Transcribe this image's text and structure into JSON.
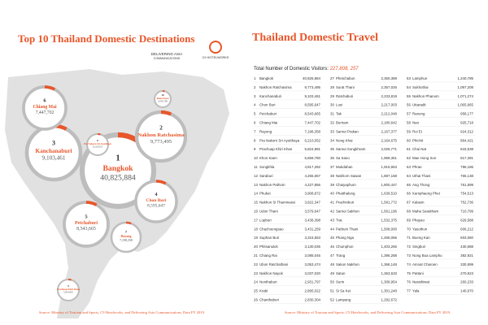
{
  "left": {
    "title": "Top 10 Thailand Domestic Destinations",
    "logo_1": "DELIVERING ASIA",
    "logo_1_sub": "COMMUNICATIONS",
    "logo_2": "C9 HOTELWORKS",
    "bubbles": [
      {
        "rank": 1,
        "name": "Bangkok",
        "value": "40,825,884"
      },
      {
        "rank": 2,
        "name": "Nakhon Ratchasima",
        "value": "9,773,495"
      },
      {
        "rank": 3,
        "name": "Kanchanaburi",
        "value": "9,103,461"
      },
      {
        "rank": 4,
        "name": "Chon Buri",
        "value": "8,595,647"
      },
      {
        "rank": 5,
        "name": "Petchaburi",
        "value": "8,543,665"
      },
      {
        "rank": 6,
        "name": "Chiang Mai",
        "value": "7,447,702"
      },
      {
        "rank": 7,
        "name": "Rayong",
        "value": "7,198,358"
      },
      {
        "rank": 8,
        "name": "Pra Nakorn Sri Ayutthaya",
        "value": "6,210,052"
      },
      {
        "rank": 9,
        "name": "Prachuap Khiri Khan",
        "value": "5,824,981"
      },
      {
        "rank": 10,
        "name": "Khon Kaen",
        "value": "5,659,780"
      }
    ],
    "source": "Source: Ministry of Tourism and Sports, C9 Hotelworks, and Delivering Asia Communications. Data FY 2019."
  },
  "right": {
    "title": "Thailand Domestic Travel",
    "total_label": "Total Number of Domestic Visitors:",
    "total_value": "227,808, 257",
    "rows": [
      {
        "rank": 1,
        "name": "Bangkok",
        "value": "40,825,884"
      },
      {
        "rank": 2,
        "name": "Nakhon Ratchasima",
        "value": "9,773,495"
      },
      {
        "rank": 3,
        "name": "Kanchanaburi",
        "value": "9,103,461"
      },
      {
        "rank": 4,
        "name": "Chon Buri",
        "value": "8,595,647"
      },
      {
        "rank": 5,
        "name": "Petchaburi",
        "value": "8,543,665"
      },
      {
        "rank": 6,
        "name": "Chiang Mai",
        "value": "7,447,702"
      },
      {
        "rank": 7,
        "name": "Rayong",
        "value": "7,198,358"
      },
      {
        "rank": 8,
        "name": "Pra Nakorn Sri Ayutthaya",
        "value": "6,210,052"
      },
      {
        "rank": 9,
        "name": "Prachuap Khiri Khan",
        "value": "5,824,981"
      },
      {
        "rank": 10,
        "name": "Khon Kaen",
        "value": "5,659,780"
      },
      {
        "rank": 11,
        "name": "Songkhla",
        "value": "4,817,282"
      },
      {
        "rank": 12,
        "name": "Saraburi",
        "value": "4,255,657"
      },
      {
        "rank": 13,
        "name": "Nakhon Pathom",
        "value": "4,227,856"
      },
      {
        "rank": 14,
        "name": "Phuket",
        "value": "3,908,872"
      },
      {
        "rank": 15,
        "name": "Nakhon Si Thammarat",
        "value": "3,822,347"
      },
      {
        "rank": 16,
        "name": "Udon Thani",
        "value": "3,579,647"
      },
      {
        "rank": 17,
        "name": "Lopburi",
        "value": "3,438,398"
      },
      {
        "rank": 18,
        "name": "Chachoengsao",
        "value": "3,431,259"
      },
      {
        "rank": 19,
        "name": "Suphan Buri",
        "value": "3,315,553"
      },
      {
        "rank": 20,
        "name": "Phitsanulok",
        "value": "3,130,036"
      },
      {
        "rank": 21,
        "name": "Chiang Rai",
        "value": "3,085,045"
      },
      {
        "rank": 22,
        "name": "Ubon Ratchathani",
        "value": "3,053,474"
      },
      {
        "rank": 23,
        "name": "Nakhon Nayok",
        "value": "3,037,020"
      },
      {
        "rank": 24,
        "name": "Nonthaburi",
        "value": "2,931,797"
      },
      {
        "rank": 25,
        "name": "Krabi",
        "value": "2,895,022"
      },
      {
        "rank": 26,
        "name": "Chanthaburi",
        "value": "2,830,304"
      },
      {
        "rank": 27,
        "name": "Phetchabun",
        "value": "2,360,389"
      },
      {
        "rank": 28,
        "name": "Surat Thani",
        "value": "2,357,026"
      },
      {
        "rank": 29,
        "name": "Ratchaburi",
        "value": "2,233,819"
      },
      {
        "rank": 30,
        "name": "Loei",
        "value": "2,217,003"
      },
      {
        "rank": 31,
        "name": "Tak",
        "value": "2,212,048"
      },
      {
        "rank": 32,
        "name": "Buriram",
        "value": "2,180,642"
      },
      {
        "rank": 33,
        "name": "Samut Prakan",
        "value": "2,167,377"
      },
      {
        "rank": 34,
        "name": "Nong Khai",
        "value": "2,164,675"
      },
      {
        "rank": 35,
        "name": "Samut Songkhram",
        "value": "2,026,771"
      },
      {
        "rank": 36,
        "name": "Sa Kaeo",
        "value": "1,969,361"
      },
      {
        "rank": 37,
        "name": "Mukdahan",
        "value": "1,915,963"
      },
      {
        "rank": 38,
        "name": "Nakhorn Sawan",
        "value": "1,887,168"
      },
      {
        "rank": 39,
        "name": "Chaiyaphum",
        "value": "1,800,447"
      },
      {
        "rank": 40,
        "name": "Phatthalung",
        "value": "1,639,510"
      },
      {
        "rank": 41,
        "name": "Prachinburi",
        "value": "1,581,772"
      },
      {
        "rank": 42,
        "name": "Samut Sakhon",
        "value": "1,561,196"
      },
      {
        "rank": 43,
        "name": "Trat",
        "value": "1,532,375"
      },
      {
        "rank": 44,
        "name": "Pathum Thani",
        "value": "1,508,000"
      },
      {
        "rank": 45,
        "name": "Phang Nga",
        "value": "1,456,066"
      },
      {
        "rank": 46,
        "name": "Chumphon",
        "value": "1,403,266"
      },
      {
        "rank": 47,
        "name": "Trang",
        "value": "1,395,288"
      },
      {
        "rank": 48,
        "name": "Sakon Nakhon",
        "value": "1,366,148"
      },
      {
        "rank": 49,
        "name": "Satun",
        "value": "1,363,533"
      },
      {
        "rank": 50,
        "name": "Surin",
        "value": "1,308,954"
      },
      {
        "rank": 51,
        "name": "Si Sa Ket",
        "value": "1,301,248"
      },
      {
        "rank": 52,
        "name": "Lampang",
        "value": "1,292,672"
      },
      {
        "rank": 53,
        "name": "Lamphun",
        "value": "1,240,785"
      },
      {
        "rank": 54,
        "name": "Sukhothai",
        "value": "1,097,208"
      },
      {
        "rank": 55,
        "name": "Nakhon Phanom",
        "value": "1,071,274"
      },
      {
        "rank": 56,
        "name": "Uttaradit",
        "value": "1,065,965"
      },
      {
        "rank": 57,
        "name": "Ranong",
        "value": "958,177"
      },
      {
        "rank": 58,
        "name": "Nan",
        "value": "925,718"
      },
      {
        "rank": 59,
        "name": "Roi Et",
        "value": "924,312"
      },
      {
        "rank": 60,
        "name": "Phichit",
        "value": "864,421"
      },
      {
        "rank": 61,
        "name": "Chai Nat",
        "value": "843,538"
      },
      {
        "rank": 62,
        "name": "Mae Hong Son",
        "value": "817,391"
      },
      {
        "rank": 63,
        "name": "Phrae",
        "value": "796,186"
      },
      {
        "rank": 64,
        "name": "Uthai Thani",
        "value": "765,138"
      },
      {
        "rank": 65,
        "name": "Ang Thong",
        "value": "761,599"
      },
      {
        "rank": 66,
        "name": "Kamphaeng Phet",
        "value": "754,513"
      },
      {
        "rank": 67,
        "name": "Kalasin",
        "value": "752,736"
      },
      {
        "rank": 68,
        "name": "Maha Sarakham",
        "value": "710,799"
      },
      {
        "rank": 69,
        "name": "Phayao",
        "value": "629,588"
      },
      {
        "rank": 70,
        "name": "Yasothon",
        "value": "606,212"
      },
      {
        "rank": 71,
        "name": "Bueng Kan",
        "value": "603,060"
      },
      {
        "rank": 72,
        "name": "Singburi",
        "value": "430,688"
      },
      {
        "rank": 73,
        "name": "Nong Bua Lamphu",
        "value": "382,921"
      },
      {
        "rank": 74,
        "name": "Amnat Charoen",
        "value": "330,599"
      },
      {
        "rank": 75,
        "name": "Pattani",
        "value": "270,923"
      },
      {
        "rank": 76,
        "name": "Narathiwat",
        "value": "260,233"
      },
      {
        "rank": 77,
        "name": "Yala",
        "value": "140,970"
      }
    ],
    "source": "Source: Ministry of Tourism and Sports, C9 Hotelworks, and Delivering Asia Communications. Data FY 2019."
  }
}
